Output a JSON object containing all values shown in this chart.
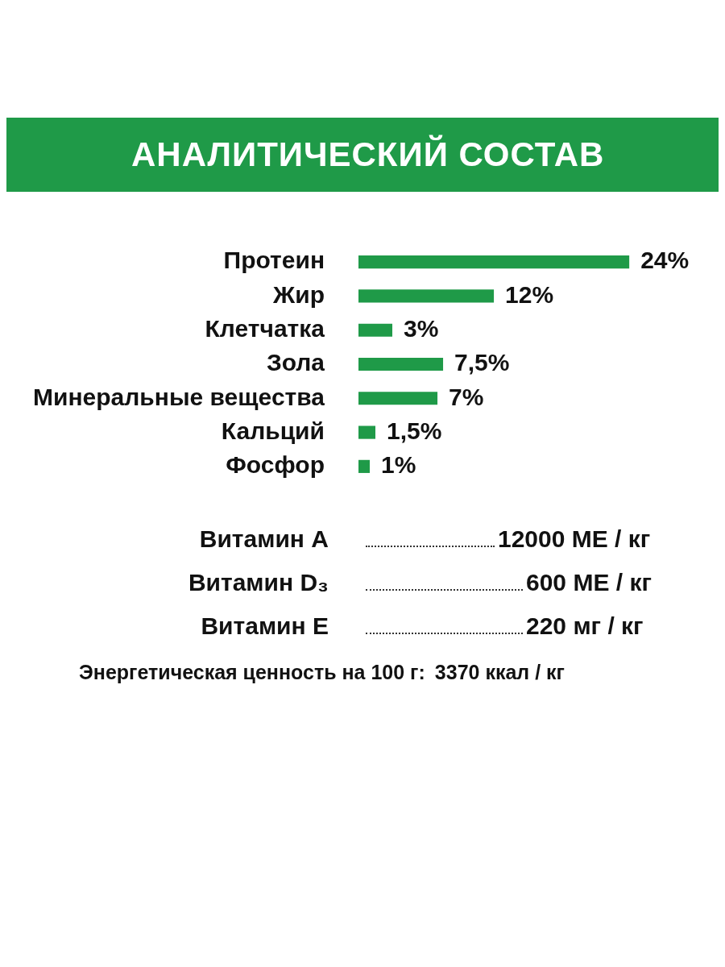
{
  "chart_data": {
    "type": "bar",
    "orientation": "horizontal",
    "title": "АНАЛИТИЧЕСКИЙ СОСТАВ",
    "categories": [
      "Протеин",
      "Жир",
      "Клетчатка",
      "Зола",
      "Минеральные вещества",
      "Кальций",
      "Фосфор"
    ],
    "values": [
      24,
      12,
      3,
      7.5,
      7,
      1.5,
      1
    ],
    "value_labels": [
      "24%",
      "12%",
      "3%",
      "7,5%",
      "7%",
      "1,5%",
      "1%"
    ],
    "color": "#1f9a48",
    "annotations": [
      "Витамин A",
      "12000 МЕ / кг",
      "Витамин D₃",
      "600 МЕ / кг",
      "Витамин E",
      "220 мг / кг",
      "Энергетическая ценность на 100 г:",
      "3370 ккал / кг"
    ]
  }
}
